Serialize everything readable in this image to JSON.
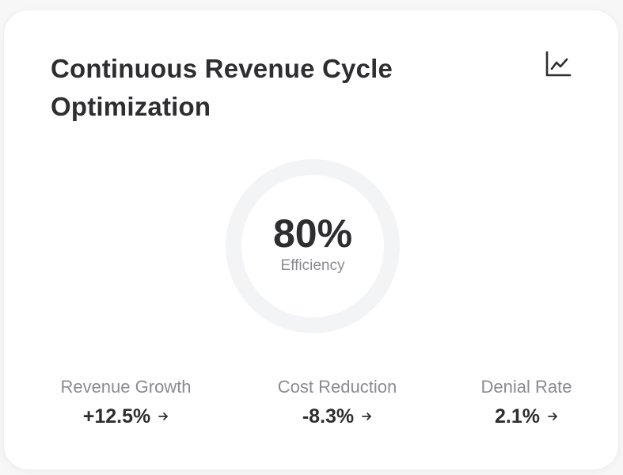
{
  "card": {
    "title": "Continuous Revenue Cycle Optimization",
    "chart_icon": "line-chart-icon"
  },
  "efficiency": {
    "value_text": "80%",
    "label": "Efficiency",
    "ring_color": "#f3f4f6"
  },
  "metrics": [
    {
      "label": "Revenue Growth",
      "value": "+12.5%",
      "icon": "arrow-right-icon"
    },
    {
      "label": "Cost Reduction",
      "value": "-8.3%",
      "icon": "arrow-right-icon"
    },
    {
      "label": "Denial Rate",
      "value": "2.1%",
      "icon": "arrow-right-icon"
    }
  ],
  "colors": {
    "text_primary": "#2e2e30",
    "text_secondary": "#8a8a91",
    "background": "#ffffff"
  }
}
